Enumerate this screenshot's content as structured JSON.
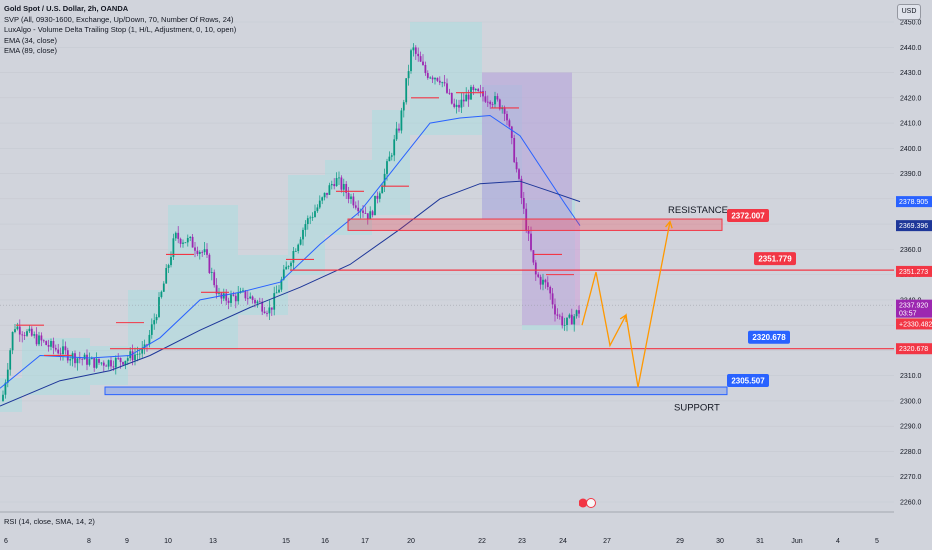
{
  "legend": {
    "title": "Gold Spot / U.S. Dollar, 2h, OANDA",
    "lines": [
      "SVP (All, 0930-1600, Exchange, Up/Down, 70, Number Of Rows, 24)",
      "LuxAlgo - Volume Delta Trailing Stop (1, H/L, Adjustment, 0, 10, open)",
      "EMA (34, close)",
      "EMA (89, close)"
    ]
  },
  "currency_button": "USD",
  "rsi_label": "RSI (14, close, SMA, 14, 2)",
  "colors": {
    "background": "#d1d4dc",
    "bull": "#089981",
    "bear": "#9c27b0",
    "ema34": "#2962ff",
    "ema89": "#1e3799",
    "resistance": "#f23645",
    "support": "#2962ff",
    "forecast": "#ff9800",
    "profile": "#a8dde0"
  },
  "chart_data": {
    "type": "candlestick",
    "title": "Gold Spot / U.S. Dollar, 2h, OANDA",
    "ylim": [
      2255,
      2452
    ],
    "y_ticks": [
      2260,
      2270,
      2280,
      2290,
      2300,
      2310,
      2320,
      2330,
      2340,
      2350,
      2360,
      2370,
      2380,
      2390,
      2400,
      2410,
      2420,
      2430,
      2440,
      2450
    ],
    "x_ticks": [
      "6",
      "8",
      "9",
      "10",
      "13",
      "15",
      "16",
      "17",
      "20",
      "22",
      "23",
      "24",
      "27",
      "29",
      "30",
      "31",
      "Jun",
      "4",
      "5"
    ],
    "price_badges": [
      {
        "label": "2378.905",
        "value": 2378.905,
        "color": "#2962ff"
      },
      {
        "label": "2369.396",
        "value": 2369.396,
        "color": "#1e3799"
      },
      {
        "label": "2351.273",
        "value": 2351.273,
        "color": "#f23645"
      },
      {
        "label": "2337.920",
        "value": 2337.92,
        "color": "#9c27b0",
        "sub": "03:57"
      },
      {
        "label": "+2330.482",
        "value": 2330.482,
        "color": "#f23645"
      },
      {
        "label": "2320.678",
        "value": 2320.678,
        "color": "#f23645"
      }
    ],
    "levels": [
      {
        "name": "RESISTANCE",
        "price_label": "2372.007",
        "low": 2367.5,
        "high": 2372.007
      },
      {
        "name": "SUPPORT",
        "price_label": "2305.507",
        "low": 2302.5,
        "high": 2305.507
      },
      {
        "price_label": "2351.779",
        "value": 2351.779
      },
      {
        "price_label": "2320.678",
        "value": 2320.678
      }
    ],
    "current_price": 2337.92,
    "forecast_path": [
      2330,
      2351,
      2322,
      2334,
      2305.5,
      2371
    ]
  }
}
